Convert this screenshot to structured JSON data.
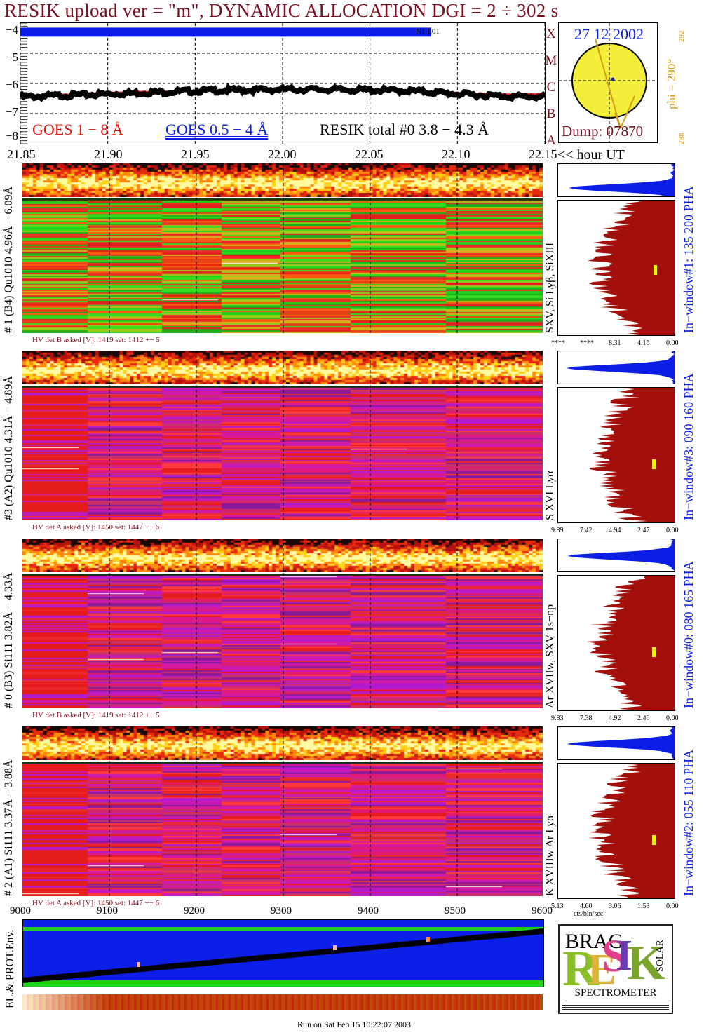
{
  "header": {
    "title": "RESIK upload ver = \"m\", DYNAMIC ALLOCATION  DGI =   2 ÷ 302 s"
  },
  "goes": {
    "y_ticks": [
      "−4",
      "−5",
      "−6",
      "−7",
      "−8"
    ],
    "legend_red": "GOES 1 − 8 Å",
    "legend_blue": "GOES 0.5 − 4 Å",
    "legend_black": "RESIK total #0  3.8 − 4.3 Å",
    "class_letters": [
      "X",
      "M",
      "C",
      "B",
      "A"
    ],
    "band_label": "N1 E01",
    "colors": {
      "red": "#e8140b",
      "blue": "#0a1ee6",
      "black": "#000000"
    }
  },
  "time_axis": {
    "ticks": [
      "21.85",
      "21.90",
      "21.95",
      "22.00",
      "22.05",
      "22.10",
      "22.15"
    ],
    "unit_label": "<< hour UT"
  },
  "sun": {
    "date": "27 12 2002",
    "dump": "Dump: 07870",
    "phi_label": "phi = 290°",
    "phi_top": "292",
    "phi_bottom": "288"
  },
  "detectors": [
    {
      "left_label": "# 1 (B4) Qu1010 4.96Å − 6.09Å",
      "line_label": "SXV, Si Lyβ, SiXIII",
      "window_label": "In−window#1:  135 200 PHA",
      "hv_label": "HV det B asked [V]:  1419 set:  1412 +−   5",
      "scale_ticks": [
        "****",
        "****",
        "8.31",
        "4.16",
        "0.00"
      ],
      "scheme": "green"
    },
    {
      "left_label": "#3 (A2) Qu1010  4.31Å − 4.89Å",
      "line_label": "S XVI Lyα",
      "window_label": "In−window#3:  090 160 PHA",
      "hv_label": "HV det A asked [V]:  1450 set:  1447 +−   6",
      "scale_ticks": [
        "9.89",
        "7.42",
        "4.94",
        "2.47",
        "0.00"
      ],
      "scheme": "magenta"
    },
    {
      "left_label": "# 0 (B3) Si111  3.82Å − 4.33Å",
      "line_label": "Ar XVIIw,  SXV 1s−np",
      "window_label": "In−window#0:  080 165 PHA",
      "hv_label": "HV det B asked [V]:  1419 set:  1412 +−   5",
      "scale_ticks": [
        "9.83",
        "7.38",
        "4.92",
        "2.46",
        "0.00"
      ],
      "scheme": "magenta"
    },
    {
      "left_label": "# 2 (A1) Si111  3.37Å − 3.88Å",
      "line_label": "K XVIIIw  Ar Lyα",
      "window_label": "In−window#2:  055 110 PHA",
      "hv_label": "HV det A asked [V]:  1450 set:  1447 +−   6",
      "scale_ticks": [
        "5.13",
        "4.60",
        "3.06",
        "1.53",
        "0.00"
      ],
      "scheme": "magenta"
    }
  ],
  "pha_axis_title": "cts/bin/sec",
  "seconds_axis": {
    "ticks": [
      "9000",
      "9100",
      "9200",
      "9300",
      "9400",
      "9500",
      "9600"
    ]
  },
  "env": {
    "label": "EL.& PROT.Env.",
    "colors": {
      "blue": "#0b1fe8",
      "green": "#1ed21a",
      "black": "#000000",
      "marker": "#ffb48c"
    }
  },
  "logo": {
    "spectrometer": "SPECTROMETER",
    "letters": [
      "R",
      "E",
      "S",
      "I",
      "K"
    ],
    "side_top": "BRAG",
    "side_right": "SOLAR"
  },
  "footer": {
    "run_text": "Run on Sat Feb 15 10:22:07 2003"
  },
  "chart_data": {
    "type": "line",
    "title": "RESIK upload ver = \"m\", DYNAMIC ALLOCATION  DGI =   2 ÷ 302 s",
    "xlabel": "<< hour UT",
    "ylabel": "",
    "xlim": [
      21.85,
      22.15
    ],
    "ylim": [
      -8,
      -4
    ],
    "x": [
      21.85,
      21.875,
      21.9,
      21.925,
      21.95,
      21.975,
      22.0,
      22.025,
      22.05,
      22.075,
      22.1,
      22.125,
      22.15
    ],
    "series": [
      {
        "name": "GOES 1 − 8 Å",
        "values": [
          -6.4,
          -6.35,
          -6.3,
          -6.25,
          -6.25,
          -6.22,
          -6.2,
          -6.2,
          -6.22,
          -6.25,
          -6.3,
          -6.35,
          -6.35
        ]
      },
      {
        "name": "GOES 0.5 − 4 Å",
        "values": [
          -4.25,
          -4.25,
          -4.25,
          -4.25,
          -4.25,
          -4.25,
          -4.25,
          -4.25,
          -4.25,
          -4.25,
          -4.25,
          null,
          null
        ]
      },
      {
        "name": "RESIK total #0  3.8 − 4.3 Å",
        "values": [
          -6.45,
          -6.4,
          -6.35,
          -6.3,
          -6.25,
          -6.22,
          -6.2,
          -6.2,
          -6.22,
          -6.25,
          -6.35,
          -6.42,
          -6.45
        ]
      }
    ],
    "grid": true,
    "legend_position": "bottom-left"
  }
}
